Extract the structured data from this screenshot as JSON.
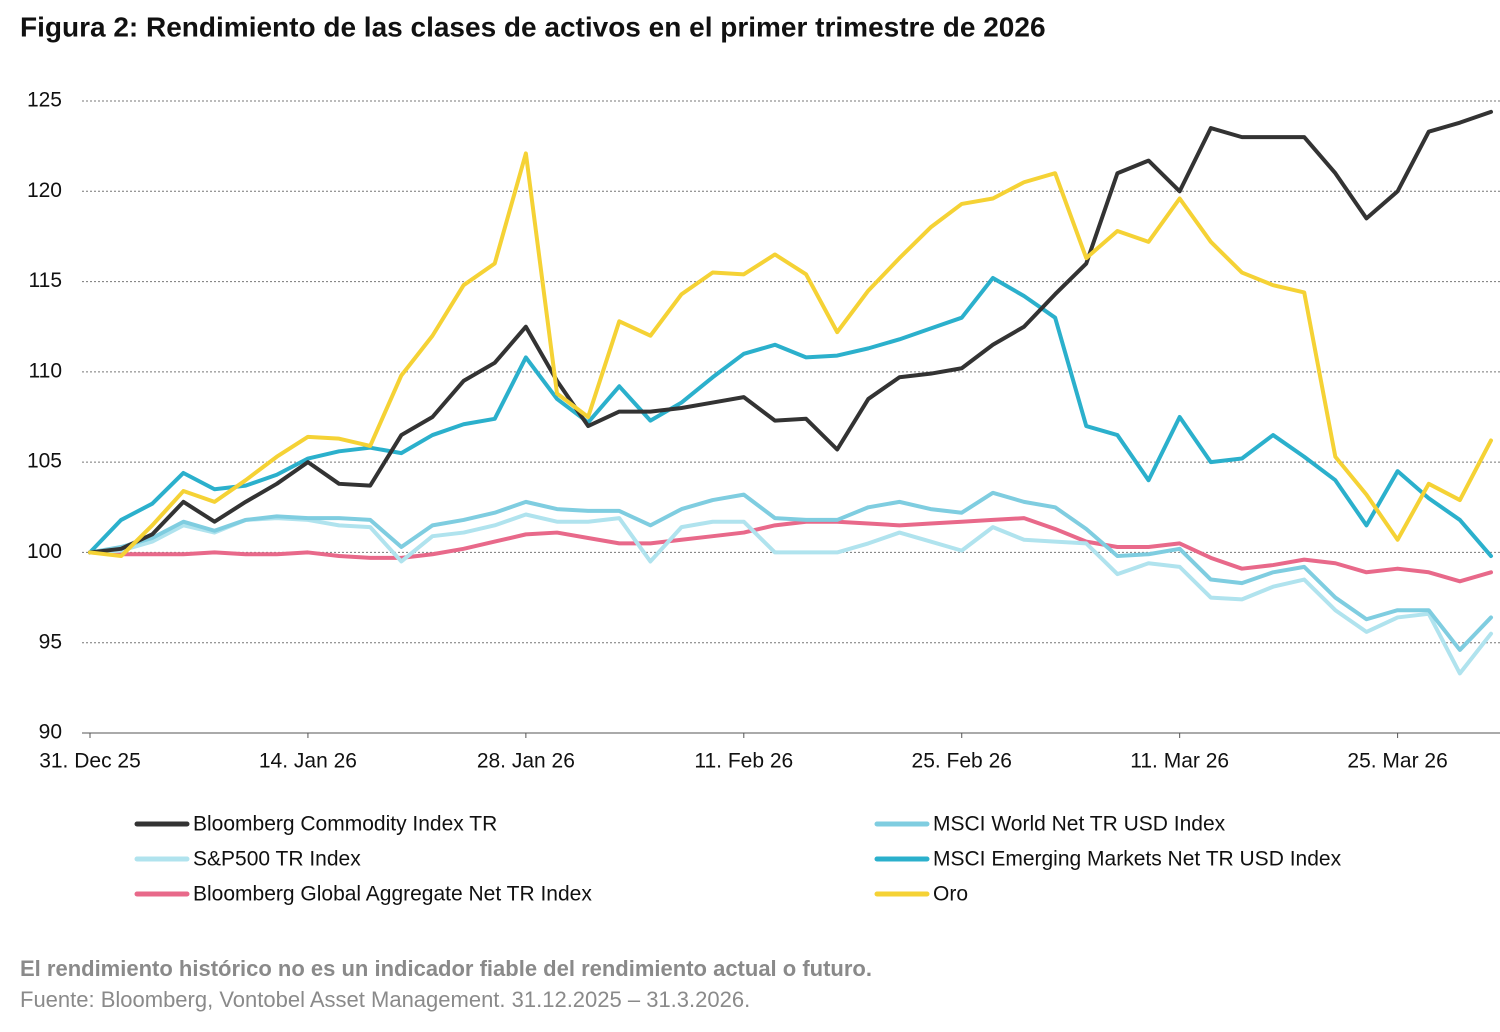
{
  "chart_data": {
    "type": "line",
    "title": "Figura 2: Rendimiento de las clases de activos en el primer trimestre de 2026",
    "note": "El rendimiento histórico no es un indicador fiable del rendimiento actual o futuro.",
    "source": "Fuente: Bloomberg, Vontobel Asset Management. 31.12.2025 – 31.3.2026.",
    "x": [
      0,
      2,
      4,
      6,
      8,
      10,
      12,
      14,
      16,
      18,
      20,
      22,
      24,
      26,
      28,
      30,
      32,
      34,
      36,
      38,
      40,
      42,
      44,
      46,
      48,
      50,
      52,
      54,
      56,
      58,
      60,
      62,
      64,
      66,
      68,
      70,
      72,
      74,
      76,
      78,
      80,
      82,
      84,
      86,
      88,
      90
    ],
    "xlim": [
      0,
      90
    ],
    "xticks": [
      {
        "value": 0,
        "label": "31. Dec 25"
      },
      {
        "value": 14,
        "label": "14. Jan 26"
      },
      {
        "value": 28,
        "label": "28. Jan 26"
      },
      {
        "value": 42,
        "label": "11. Feb 26"
      },
      {
        "value": 56,
        "label": "25. Feb 26"
      },
      {
        "value": 70,
        "label": "11. Mar 26"
      },
      {
        "value": 84,
        "label": "25. Mar 26"
      }
    ],
    "ylim": [
      90,
      125
    ],
    "yticks": [
      90,
      95,
      100,
      105,
      110,
      115,
      120,
      125
    ],
    "grid": true,
    "series": [
      {
        "name": "Bloomberg Commodity Index TR",
        "color": "#333333",
        "values": [
          100,
          100.2,
          101,
          102.8,
          101.7,
          102.8,
          103.8,
          105,
          103.8,
          103.7,
          106.5,
          107.5,
          109.5,
          110.5,
          112.5,
          109.5,
          107,
          107.8,
          107.8,
          108,
          108.3,
          108.6,
          107.3,
          107.4,
          105.7,
          108.5,
          109.7,
          109.9,
          110.2,
          111.5,
          112.5,
          114.3,
          116,
          121,
          121.7,
          120,
          123.5,
          123,
          123,
          123,
          121,
          118.5,
          120,
          123.3,
          123.8,
          124.4
        ]
      },
      {
        "name": "MSCI World Net TR USD Index",
        "color": "#7fcde0",
        "values": [
          100,
          100.3,
          100.8,
          101.7,
          101.2,
          101.8,
          102,
          101.9,
          101.9,
          101.8,
          100.3,
          101.5,
          101.8,
          102.2,
          102.8,
          102.4,
          102.3,
          102.3,
          101.5,
          102.4,
          102.9,
          103.2,
          101.9,
          101.8,
          101.8,
          102.5,
          102.8,
          102.4,
          102.2,
          103.3,
          102.8,
          102.5,
          101.3,
          99.8,
          99.9,
          100.2,
          98.5,
          98.3,
          98.9,
          99.2,
          97.5,
          96.3,
          96.8,
          96.8,
          94.6,
          96.4
        ]
      },
      {
        "name": "S&P500 TR Index",
        "color": "#b0e3ee",
        "values": [
          100,
          100.1,
          100.6,
          101.5,
          101.1,
          101.8,
          101.9,
          101.8,
          101.5,
          101.4,
          99.5,
          100.9,
          101.1,
          101.5,
          102.1,
          101.7,
          101.7,
          101.9,
          99.5,
          101.4,
          101.7,
          101.7,
          100,
          100,
          100,
          100.5,
          101.1,
          100.6,
          100.1,
          101.4,
          100.7,
          100.6,
          100.5,
          98.8,
          99.4,
          99.2,
          97.5,
          97.4,
          98.1,
          98.5,
          96.8,
          95.6,
          96.4,
          96.6,
          93.3,
          95.5
        ]
      },
      {
        "name": "MSCI Emerging Markets Net TR USD Index",
        "color": "#2bb0cc",
        "values": [
          100,
          101.8,
          102.7,
          104.4,
          103.5,
          103.7,
          104.3,
          105.2,
          105.6,
          105.8,
          105.5,
          106.5,
          107.1,
          107.4,
          110.8,
          108.5,
          107.2,
          109.2,
          107.3,
          108.3,
          109.7,
          111,
          111.5,
          110.8,
          110.9,
          111.3,
          111.8,
          112.4,
          113,
          115.2,
          114.2,
          113,
          107,
          106.5,
          104,
          107.5,
          105,
          105.2,
          106.5,
          105.3,
          104,
          101.5,
          104.5,
          103,
          101.8,
          99.8
        ]
      },
      {
        "name": "Bloomberg Global Aggregate Net TR Index",
        "color": "#e8698a",
        "values": [
          100,
          99.9,
          99.9,
          99.9,
          100,
          99.9,
          99.9,
          100,
          99.8,
          99.7,
          99.7,
          99.9,
          100.2,
          100.6,
          101,
          101.1,
          100.8,
          100.5,
          100.5,
          100.7,
          100.9,
          101.1,
          101.5,
          101.7,
          101.7,
          101.6,
          101.5,
          101.6,
          101.7,
          101.8,
          101.9,
          101.3,
          100.6,
          100.3,
          100.3,
          100.5,
          99.7,
          99.1,
          99.3,
          99.6,
          99.4,
          98.9,
          99.1,
          98.9,
          98.4,
          98.9
        ]
      },
      {
        "name": "Oro",
        "color": "#f5d235",
        "values": [
          100,
          99.8,
          101.5,
          103.4,
          102.8,
          104,
          105.3,
          106.4,
          106.3,
          105.9,
          109.8,
          112,
          114.8,
          116,
          122.1,
          108.8,
          107.5,
          112.8,
          112,
          114.3,
          115.5,
          115.4,
          116.5,
          115.4,
          112.2,
          114.5,
          116.3,
          118,
          119.3,
          119.6,
          120.5,
          121,
          116.3,
          117.8,
          117.2,
          119.6,
          117.2,
          115.5,
          114.8,
          114.4,
          105.3,
          103.2,
          100.7,
          103.8,
          102.9,
          106.2
        ]
      }
    ]
  }
}
